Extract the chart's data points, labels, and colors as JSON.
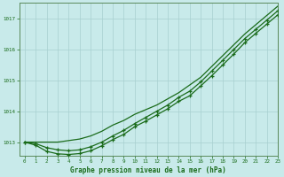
{
  "title": "Graphe pression niveau de la mer (hPa)",
  "background_color": "#c8eaea",
  "grid_color": "#a8d0d0",
  "line_color": "#1a6b1a",
  "xlim": [
    -0.5,
    23
  ],
  "ylim": [
    1012.55,
    1017.5
  ],
  "yticks": [
    1013,
    1014,
    1015,
    1016,
    1017
  ],
  "xticks": [
    0,
    1,
    2,
    3,
    4,
    5,
    6,
    7,
    8,
    9,
    10,
    11,
    12,
    13,
    14,
    15,
    16,
    17,
    18,
    19,
    20,
    21,
    22,
    23
  ],
  "hours": [
    0,
    1,
    2,
    3,
    4,
    5,
    6,
    7,
    8,
    9,
    10,
    11,
    12,
    13,
    14,
    15,
    16,
    17,
    18,
    19,
    20,
    21,
    22,
    23
  ],
  "top_line": [
    1013.0,
    1013.0,
    1013.0,
    1013.0,
    1013.05,
    1013.1,
    1013.2,
    1013.35,
    1013.55,
    1013.7,
    1013.9,
    1014.05,
    1014.2,
    1014.4,
    1014.6,
    1014.85,
    1015.1,
    1015.45,
    1015.8,
    1016.15,
    1016.5,
    1016.8,
    1017.1,
    1017.4
  ],
  "mid_line": [
    1013.0,
    1012.95,
    1012.82,
    1012.75,
    1012.72,
    1012.75,
    1012.85,
    1013.0,
    1013.2,
    1013.38,
    1013.6,
    1013.8,
    1014.0,
    1014.2,
    1014.45,
    1014.65,
    1014.95,
    1015.3,
    1015.65,
    1016.0,
    1016.35,
    1016.65,
    1016.95,
    1017.25
  ],
  "bot_line": [
    1013.0,
    1012.9,
    1012.7,
    1012.62,
    1012.6,
    1012.63,
    1012.72,
    1012.88,
    1013.08,
    1013.25,
    1013.5,
    1013.68,
    1013.88,
    1014.08,
    1014.32,
    1014.5,
    1014.82,
    1015.15,
    1015.5,
    1015.85,
    1016.22,
    1016.52,
    1016.82,
    1017.12
  ]
}
